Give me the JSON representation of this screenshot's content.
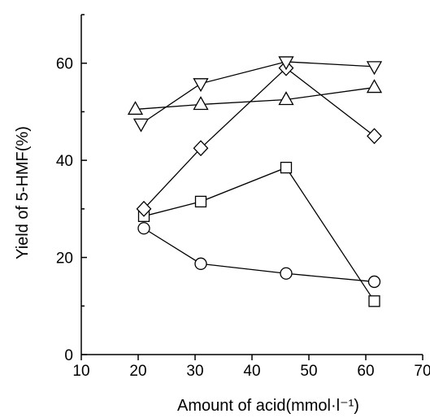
{
  "chart_data": {
    "type": "line",
    "title": "",
    "xlabel": "Amount of acid(mmol·l⁻¹)",
    "ylabel": "Yield of 5-HMF(%)",
    "xlim": [
      10,
      70
    ],
    "ylim": [
      0,
      70
    ],
    "x_major_ticks": [
      10,
      20,
      30,
      40,
      50,
      60,
      70
    ],
    "x_tick_labels": [
      "10",
      "20",
      "30",
      "40",
      "50",
      "60",
      "70"
    ],
    "y_major_ticks": [
      0,
      20,
      40,
      60
    ],
    "y_tick_labels": [
      "0",
      "20",
      "40",
      "60"
    ],
    "y_minor_ticks": [
      10,
      30,
      50,
      70
    ],
    "grid": false,
    "legend": "none",
    "series": [
      {
        "marker": "circle",
        "points": [
          [
            21,
            26
          ],
          [
            31,
            18.7
          ],
          [
            46,
            16.7
          ],
          [
            61.5,
            15
          ]
        ]
      },
      {
        "marker": "square",
        "points": [
          [
            21,
            28.5
          ],
          [
            31,
            31.5
          ],
          [
            46,
            38.5
          ],
          [
            61.5,
            11
          ]
        ]
      },
      {
        "marker": "diamond",
        "points": [
          [
            21,
            30
          ],
          [
            31,
            42.5
          ],
          [
            46,
            59
          ],
          [
            61.5,
            45
          ]
        ]
      },
      {
        "marker": "triangle-up",
        "points": [
          [
            19.5,
            50.5
          ],
          [
            31,
            51.5
          ],
          [
            46,
            52.5
          ],
          [
            61.5,
            55
          ]
        ]
      },
      {
        "marker": "triangle-down",
        "points": [
          [
            20.5,
            47.5
          ],
          [
            31,
            55.8
          ],
          [
            46,
            60.3
          ],
          [
            61.5,
            59.3
          ]
        ]
      }
    ]
  }
}
